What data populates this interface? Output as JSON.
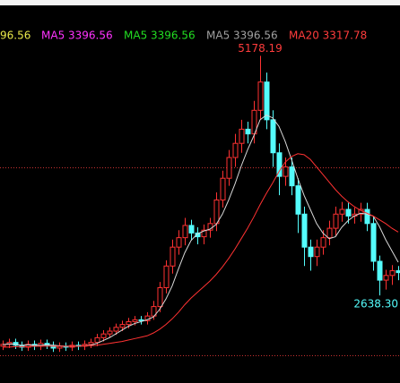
{
  "chart_data": {
    "type": "candlestick",
    "legend": [
      {
        "text": "96.56",
        "color": "#e8e84a"
      },
      {
        "text": "MA5 3396.56",
        "color": "#ff33ff"
      },
      {
        "text": "MA5 3396.56",
        "color": "#22dd22"
      },
      {
        "text": "MA5 3396.56",
        "color": "#a0a0a0"
      },
      {
        "text": "MA20 3317.78",
        "color": "#ff3c3c"
      }
    ],
    "up_color": "#ff3232",
    "down_color": "#54fcfc",
    "ylim": [
      1710,
      5390
    ],
    "ref_lines": {
      "values": [
        3993,
        2003
      ],
      "color": "#c83232"
    },
    "open": [
      2100,
      2120,
      2140,
      2110,
      2090,
      2120,
      2100,
      2130,
      2110,
      2080,
      2100,
      2090,
      2110,
      2100,
      2120,
      2140,
      2190,
      2230,
      2260,
      2300,
      2330,
      2360,
      2380,
      2370,
      2420,
      2520,
      2720,
      2950,
      3150,
      3250,
      3380,
      3300,
      3260,
      3330,
      3400,
      3650,
      3880,
      4100,
      4250,
      4400,
      4350,
      4600,
      4900,
      4500,
      4150,
      3900,
      4000,
      3800,
      3500,
      3150,
      3050,
      3150,
      3250,
      3350,
      3500,
      3550,
      3480,
      3500,
      3550,
      3400,
      3000,
      2800,
      2850,
      2900
    ],
    "high": [
      2160,
      2180,
      2180,
      2150,
      2160,
      2160,
      2170,
      2170,
      2150,
      2140,
      2140,
      2150,
      2150,
      2160,
      2180,
      2230,
      2270,
      2300,
      2340,
      2370,
      2400,
      2420,
      2420,
      2460,
      2580,
      2780,
      3010,
      3230,
      3330,
      3460,
      3440,
      3360,
      3390,
      3460,
      3730,
      3960,
      4180,
      4350,
      4500,
      4480,
      4700,
      5178.19,
      5000,
      4600,
      4250,
      4100,
      4100,
      3880,
      3580,
      3230,
      3230,
      3330,
      3430,
      3580,
      3630,
      3620,
      3570,
      3620,
      3620,
      3470,
      3060,
      2910,
      2960,
      2950
    ],
    "low": [
      2060,
      2080,
      2070,
      2050,
      2050,
      2060,
      2060,
      2070,
      2040,
      2040,
      2050,
      2050,
      2060,
      2060,
      2080,
      2100,
      2150,
      2190,
      2220,
      2260,
      2290,
      2320,
      2330,
      2330,
      2380,
      2460,
      2660,
      2870,
      3070,
      3170,
      3220,
      3180,
      3180,
      3250,
      3320,
      3570,
      3800,
      4000,
      4150,
      4250,
      4250,
      4500,
      4400,
      4000,
      3700,
      3800,
      3700,
      3300,
      2950,
      2900,
      2950,
      3070,
      3170,
      3270,
      3420,
      3400,
      3400,
      3420,
      3320,
      2900,
      2638.3,
      2700,
      2750,
      2800
    ],
    "close": [
      2120,
      2140,
      2110,
      2090,
      2120,
      2100,
      2130,
      2110,
      2080,
      2100,
      2090,
      2110,
      2100,
      2120,
      2140,
      2190,
      2230,
      2260,
      2300,
      2330,
      2360,
      2380,
      2370,
      2420,
      2520,
      2720,
      2950,
      3150,
      3250,
      3380,
      3300,
      3260,
      3330,
      3400,
      3650,
      3880,
      4100,
      4250,
      4400,
      4350,
      4600,
      4900,
      4500,
      4150,
      3900,
      4000,
      3800,
      3500,
      3150,
      3050,
      3150,
      3250,
      3350,
      3500,
      3550,
      3480,
      3500,
      3550,
      3400,
      3000,
      2800,
      2850,
      2900,
      2880
    ],
    "lines": [
      {
        "color": "#d8d8d8",
        "values": [
          2115,
          2125,
          2120,
          2110,
          2115,
          2110,
          2110,
          2115,
          2110,
          2105,
          2100,
          2100,
          2100,
          2105,
          2110,
          2130,
          2160,
          2190,
          2230,
          2270,
          2310,
          2340,
          2360,
          2380,
          2410,
          2490,
          2600,
          2740,
          2920,
          3090,
          3220,
          3290,
          3320,
          3340,
          3390,
          3500,
          3650,
          3820,
          4010,
          4180,
          4330,
          4500,
          4550,
          4520,
          4430,
          4270,
          4080,
          3880,
          3700,
          3550,
          3400,
          3300,
          3240,
          3260,
          3360,
          3430,
          3480,
          3510,
          3500,
          3480,
          3370,
          3230,
          3110,
          2990
        ]
      },
      {
        "color": "#ff3232",
        "values": [
          2090,
          2090,
          2095,
          2095,
          2095,
          2100,
          2100,
          2100,
          2100,
          2100,
          2100,
          2100,
          2100,
          2105,
          2105,
          2110,
          2120,
          2130,
          2140,
          2150,
          2165,
          2180,
          2195,
          2210,
          2240,
          2280,
          2330,
          2390,
          2460,
          2540,
          2610,
          2670,
          2730,
          2790,
          2860,
          2940,
          3030,
          3130,
          3240,
          3350,
          3470,
          3600,
          3720,
          3830,
          3950,
          4050,
          4110,
          4140,
          4130,
          4080,
          4000,
          3920,
          3840,
          3760,
          3690,
          3630,
          3580,
          3540,
          3510,
          3480,
          3440,
          3400,
          3350,
          3310
        ]
      }
    ],
    "annotations": [
      {
        "text": "5178.19",
        "index": 41,
        "value": 5178.19,
        "color": "#ff3c3c"
      },
      {
        "text": "2638.30",
        "index": 60,
        "value": 2638.3,
        "color": "#54fcfc"
      }
    ]
  }
}
